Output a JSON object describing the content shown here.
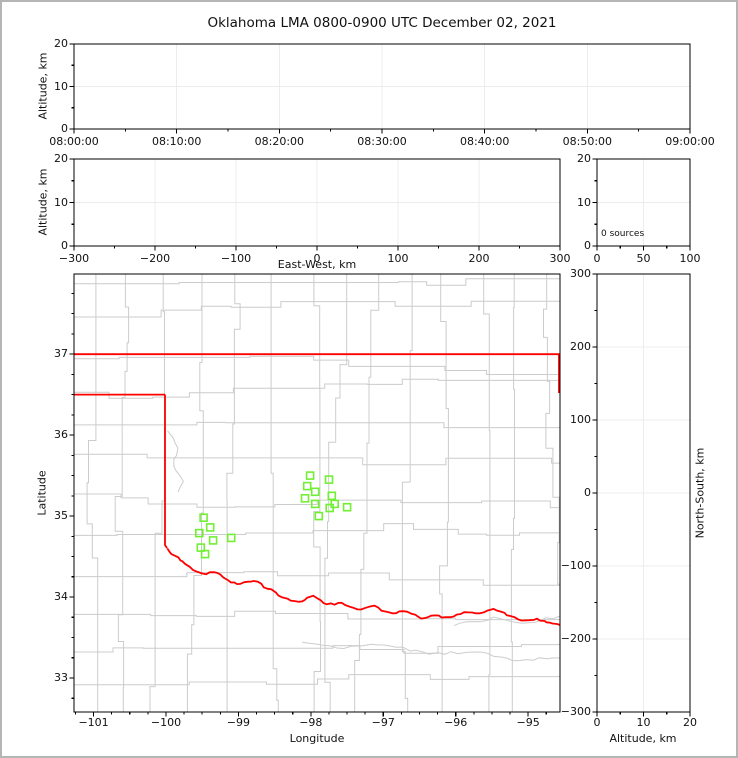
{
  "title": "Oklahoma LMA 0800-0900 UTC December 02, 2021",
  "colors": {
    "background": "#ffffff",
    "frame": "#b5b5b5",
    "county_lines": "#cccccc",
    "state_border": "#ff0000",
    "source_marker": "#70ef33",
    "gridline": "#ececec",
    "spine": "#000000",
    "text": "#111111"
  },
  "chart_data": [
    {
      "id": "time_altitude",
      "type": "scatter",
      "xlabel": "",
      "ylabel": "Altitude, km",
      "x_range": [
        0,
        3600
      ],
      "x_ticks": [
        0,
        600,
        1200,
        1800,
        2400,
        3000,
        3600
      ],
      "x_tick_labels": [
        "08:00:00",
        "08:10:00",
        "08:20:00",
        "08:30:00",
        "08:40:00",
        "08:50:00",
        "09:00:00"
      ],
      "y_range": [
        0,
        20
      ],
      "y_ticks": [
        0,
        10,
        20
      ],
      "y_tick_labels": [
        "0",
        "10",
        "20"
      ],
      "points": []
    },
    {
      "id": "ew_altitude",
      "type": "scatter",
      "xlabel": "East-West, km",
      "ylabel": "Altitude, km",
      "x_range": [
        -300,
        300
      ],
      "x_ticks": [
        -300,
        -200,
        -100,
        0,
        100,
        200,
        300
      ],
      "x_tick_labels": [
        "−300",
        "−200",
        "−100",
        "0",
        "100",
        "200",
        "300"
      ],
      "y_range": [
        0,
        20
      ],
      "y_ticks": [
        0,
        10,
        20
      ],
      "y_tick_labels": [
        "0",
        "10",
        "20"
      ],
      "points": []
    },
    {
      "id": "altitude_histogram",
      "type": "histogram",
      "xlabel": "",
      "ylabel": "",
      "annotation": "0 sources",
      "x_range": [
        0,
        100
      ],
      "x_ticks": [
        0,
        50,
        100
      ],
      "x_tick_labels": [
        "0",
        "50",
        "100"
      ],
      "y_range": [
        0,
        20
      ],
      "y_ticks": [
        0,
        10,
        20
      ],
      "y_tick_labels": [
        "0",
        "10",
        "20"
      ],
      "points": []
    },
    {
      "id": "plan_view_map",
      "type": "scatter",
      "xlabel": "Longitude",
      "ylabel": "Latitude",
      "x_range": [
        -101.27,
        -94.56
      ],
      "x_ticks": [
        -101,
        -100,
        -99,
        -98,
        -97,
        -96,
        -95
      ],
      "x_tick_labels": [
        "−101",
        "−100",
        "−99",
        "−98",
        "−97",
        "−96",
        "−95"
      ],
      "y_range": [
        32.58,
        37.99
      ],
      "y_ticks": [
        33,
        34,
        35,
        36,
        37
      ],
      "y_tick_labels": [
        "33",
        "34",
        "35",
        "36",
        "37"
      ],
      "marker": {
        "shape": "open-square",
        "size": 7,
        "color": "#70ef33"
      },
      "points": [
        {
          "lon": -98.01,
          "lat": 35.5
        },
        {
          "lon": -97.75,
          "lat": 35.45
        },
        {
          "lon": -98.05,
          "lat": 35.37
        },
        {
          "lon": -97.94,
          "lat": 35.3
        },
        {
          "lon": -98.08,
          "lat": 35.22
        },
        {
          "lon": -97.71,
          "lat": 35.25
        },
        {
          "lon": -97.67,
          "lat": 35.15
        },
        {
          "lon": -97.94,
          "lat": 35.15
        },
        {
          "lon": -97.5,
          "lat": 35.11
        },
        {
          "lon": -97.74,
          "lat": 35.1
        },
        {
          "lon": -97.89,
          "lat": 35.0
        },
        {
          "lon": -99.48,
          "lat": 34.98
        },
        {
          "lon": -99.39,
          "lat": 34.86
        },
        {
          "lon": -99.54,
          "lat": 34.79
        },
        {
          "lon": -99.35,
          "lat": 34.7
        },
        {
          "lon": -99.1,
          "lat": 34.73
        },
        {
          "lon": -99.52,
          "lat": 34.61
        },
        {
          "lon": -99.46,
          "lat": 34.53
        }
      ]
    },
    {
      "id": "ns_altitude",
      "type": "scatter",
      "xlabel": "Altitude, km",
      "ylabel": "North-South, km",
      "x_range": [
        0,
        20
      ],
      "x_ticks": [
        0,
        10,
        20
      ],
      "x_tick_labels": [
        "0",
        "10",
        "20"
      ],
      "y_range": [
        -300,
        300
      ],
      "y_ticks": [
        300,
        200,
        100,
        0,
        -100,
        -200,
        -300
      ],
      "y_tick_labels": [
        "300",
        "200",
        "100",
        "0",
        "−100",
        "−200",
        "−300"
      ],
      "points": []
    }
  ]
}
